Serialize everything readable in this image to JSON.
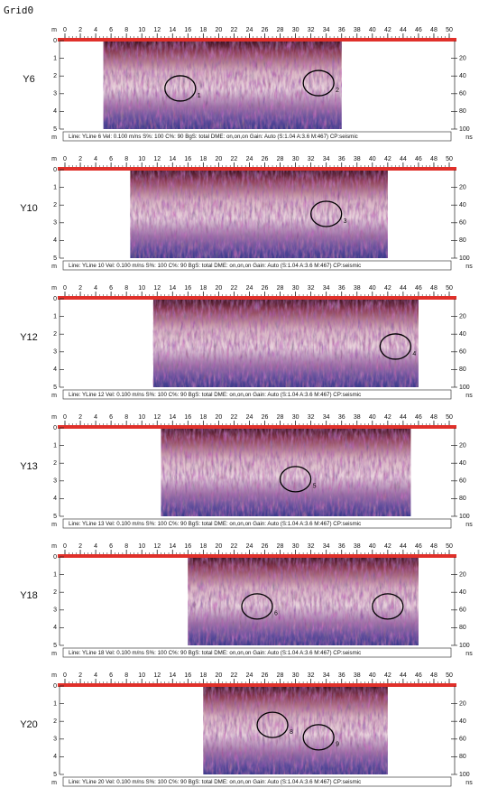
{
  "title": "Grid0",
  "axes": {
    "x_unit": "m",
    "x_lim": [
      0,
      50
    ],
    "x_ticks": [
      0,
      2,
      4,
      6,
      8,
      10,
      12,
      14,
      16,
      18,
      20,
      22,
      24,
      26,
      28,
      30,
      32,
      34,
      36,
      38,
      40,
      42,
      44,
      46,
      48,
      50
    ],
    "depth_unit": "m",
    "depth_lim": [
      0,
      5
    ],
    "depth_ticks": [
      0,
      1,
      2,
      3,
      4,
      5
    ],
    "time_unit": "ns",
    "time_lim": [
      0,
      100
    ],
    "time_ticks": [
      20,
      40,
      60,
      80,
      100
    ]
  },
  "panels": [
    {
      "label": "Y6",
      "start": 5,
      "end": 36,
      "info": "Line: YLine 6  Vel: 0.100 m/ns  S%: 100  C%: 90  BgS: total  DME: on,on,on  Gain: Auto (S:1.04 A:3.6 M:467)  CP:seismic",
      "anomalies": [
        {
          "label": "1",
          "x": 15,
          "depth": 2.7
        },
        {
          "label": "2",
          "x": 33,
          "depth": 2.4
        }
      ]
    },
    {
      "label": "Y10",
      "start": 8.5,
      "end": 42,
      "info": "Line: YLine 10  Vel: 0.100 m/ns  S%: 100  C%: 90  BgS: total  DME: on,on,on  Gain: Auto (S:1.04 A:3.6 M:467)  CP:seismic",
      "anomalies": [
        {
          "label": "3",
          "x": 34,
          "depth": 2.5
        }
      ]
    },
    {
      "label": "Y12",
      "start": 11.5,
      "end": 46,
      "info": "Line: YLine 12  Vel: 0.100 m/ns  S%: 100  C%: 90  BgS: total  DME: on,on,on  Gain: Auto (S:1.04 A:3.6 M:467)  CP:seismic",
      "anomalies": [
        {
          "label": "4",
          "x": 43,
          "depth": 2.7
        }
      ]
    },
    {
      "label": "Y13",
      "start": 12.5,
      "end": 45,
      "info": "Line: YLine 13  Vel: 0.100 m/ns  S%: 100  C%: 90  BgS: total  DME: on,on,on  Gain: Auto (S:1.04 A:3.6 M:467)  CP:seismic",
      "anomalies": [
        {
          "label": "5",
          "x": 30,
          "depth": 2.9
        }
      ]
    },
    {
      "label": "Y18",
      "start": 16,
      "end": 46,
      "info": "Line: YLine 18  Vel: 0.100 m/ns  S%: 100  C%: 90  BgS: total  DME: on,on,on  Gain: Auto (S:1.04 A:3.6 M:467)  CP:seismic",
      "anomalies": [
        {
          "label": "6",
          "x": 25,
          "depth": 2.8
        },
        {
          "x": 42,
          "depth": 2.8
        }
      ]
    },
    {
      "label": "Y20",
      "start": 18,
      "end": 42,
      "info": "Line: YLine 20  Vel: 0.100 m/ns  S%: 100  C%: 90  BgS: total  DME: on,on,on  Gain: Auto (S:1.04 A:3.6 M:467)  CP:seismic",
      "anomalies": [
        {
          "label": "8",
          "x": 27,
          "depth": 2.2
        },
        {
          "label": "9",
          "x": 33,
          "depth": 2.9
        }
      ]
    }
  ]
}
